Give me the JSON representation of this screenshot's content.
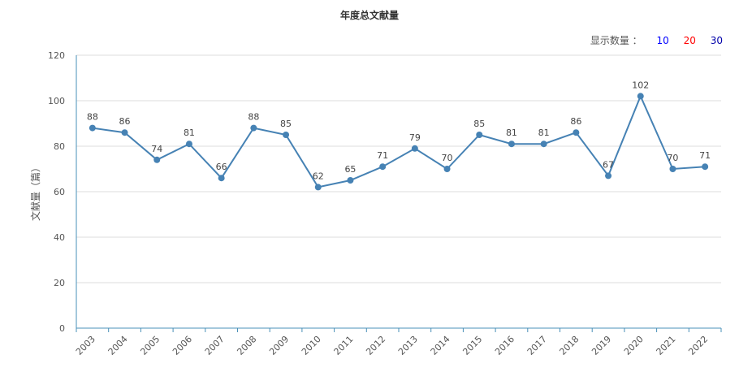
{
  "toggle": {
    "label": "显示数量 ：",
    "options": [
      {
        "value": "10",
        "color": "#0000ff"
      },
      {
        "value": "20",
        "color": "#ff0000"
      },
      {
        "value": "30",
        "color": "#0000aa"
      }
    ]
  },
  "chart_data": {
    "type": "line",
    "title": "年度总文献量",
    "xlabel": "",
    "ylabel": "文献量（篇）",
    "ylim": [
      0,
      120
    ],
    "yticks": [
      0,
      20,
      40,
      60,
      80,
      100,
      120
    ],
    "grid": true,
    "line_color": "#4682b4",
    "categories": [
      "2003",
      "2004",
      "2005",
      "2006",
      "2007",
      "2008",
      "2009",
      "2010",
      "2011",
      "2012",
      "2013",
      "2014",
      "2015",
      "2016",
      "2017",
      "2018",
      "2019",
      "2020",
      "2021",
      "2022"
    ],
    "values": [
      88,
      86,
      74,
      81,
      66,
      88,
      85,
      62,
      65,
      71,
      79,
      70,
      85,
      81,
      81,
      86,
      67,
      102,
      70,
      71
    ]
  }
}
